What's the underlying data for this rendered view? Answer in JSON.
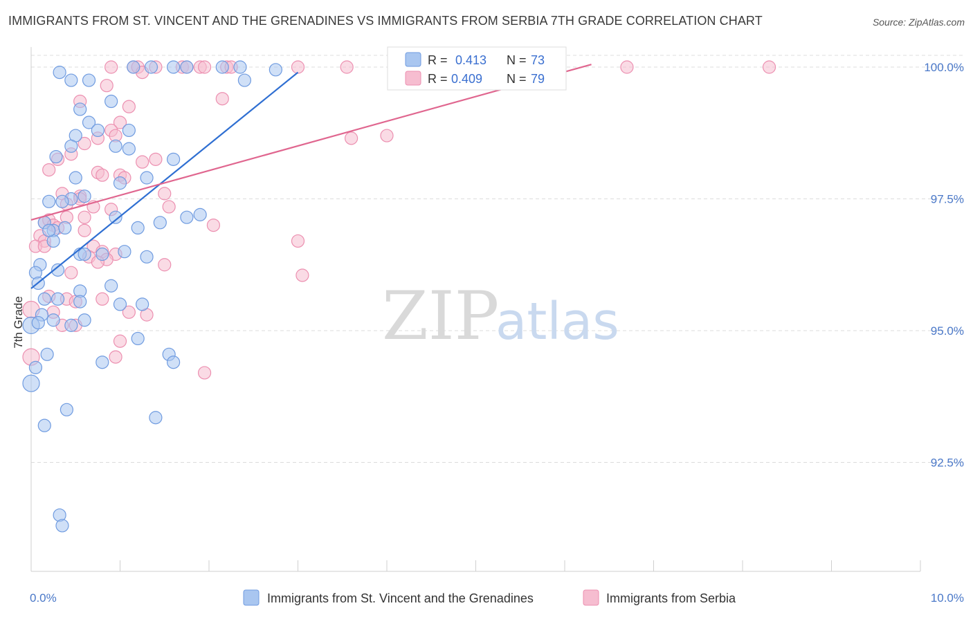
{
  "header": {
    "title": "IMMIGRANTS FROM ST. VINCENT AND THE GRENADINES VS IMMIGRANTS FROM SERBIA 7TH GRADE CORRELATION CHART",
    "source": "Source: ZipAtlas.com"
  },
  "watermark": {
    "zip": "ZIP",
    "atlas": "atlas"
  },
  "colors": {
    "blue_fill": "#a9c6f0",
    "blue_stroke": "#6f9be0",
    "blue_line": "#2f6fd2",
    "pink_fill": "#f6bdd0",
    "pink_stroke": "#ec8fb0",
    "pink_line": "#e0668f",
    "axis_label": "#4a78c8",
    "grid": "#dcdcdc"
  },
  "legend": {
    "r_label": "R = ",
    "n_label": "N = ",
    "blue": {
      "r": "0.413",
      "n": "73"
    },
    "pink": {
      "r": "0.409",
      "n": "79"
    }
  },
  "chart_data": {
    "type": "scatter",
    "title": "IMMIGRANTS FROM ST. VINCENT AND THE GRENADINES VS IMMIGRANTS FROM SERBIA 7TH GRADE CORRELATION CHART",
    "xlabel": "",
    "ylabel": "7th Grade",
    "xlim": [
      0,
      10
    ],
    "ylim": [
      90.5,
      100.3
    ],
    "x_tick_labels": [
      {
        "value": 0,
        "label": "0.0%"
      },
      {
        "value": 10,
        "label": "10.0%"
      }
    ],
    "x_minor_ticks": [
      1,
      2,
      3,
      4,
      5,
      6,
      7,
      8,
      9,
      10
    ],
    "y_ticks": [
      {
        "value": 100,
        "label": "100.0%"
      },
      {
        "value": 97.5,
        "label": "97.5%"
      },
      {
        "value": 95,
        "label": "95.0%"
      },
      {
        "value": 92.5,
        "label": "92.5%"
      }
    ],
    "grid": true,
    "legend_position": "bottom",
    "series": [
      {
        "name": "Immigrants from St. Vincent and the Grenadines",
        "color": "#a9c6f0",
        "r": 0.413,
        "n": 73,
        "trend": {
          "x": [
            0,
            3.0
          ],
          "y": [
            95.8,
            99.9
          ]
        },
        "points": [
          {
            "x": 0.32,
            "y": 99.9
          },
          {
            "x": 0.45,
            "y": 99.75
          },
          {
            "x": 0.65,
            "y": 99.75
          },
          {
            "x": 1.15,
            "y": 100.0
          },
          {
            "x": 1.35,
            "y": 100.0
          },
          {
            "x": 1.6,
            "y": 100.0
          },
          {
            "x": 1.75,
            "y": 100.0
          },
          {
            "x": 2.15,
            "y": 100.0
          },
          {
            "x": 2.35,
            "y": 100.0
          },
          {
            "x": 2.4,
            "y": 99.75
          },
          {
            "x": 2.75,
            "y": 99.95
          },
          {
            "x": 0.9,
            "y": 99.35
          },
          {
            "x": 0.55,
            "y": 99.2
          },
          {
            "x": 0.65,
            "y": 98.95
          },
          {
            "x": 0.75,
            "y": 98.8
          },
          {
            "x": 0.5,
            "y": 98.7
          },
          {
            "x": 1.1,
            "y": 98.8
          },
          {
            "x": 0.45,
            "y": 98.5
          },
          {
            "x": 0.95,
            "y": 98.5
          },
          {
            "x": 1.1,
            "y": 98.45
          },
          {
            "x": 0.28,
            "y": 98.3
          },
          {
            "x": 1.6,
            "y": 98.25
          },
          {
            "x": 0.5,
            "y": 97.9
          },
          {
            "x": 1.3,
            "y": 97.9
          },
          {
            "x": 1.0,
            "y": 97.8
          },
          {
            "x": 0.2,
            "y": 97.45
          },
          {
            "x": 0.45,
            "y": 97.5
          },
          {
            "x": 0.6,
            "y": 97.55
          },
          {
            "x": 0.35,
            "y": 97.45
          },
          {
            "x": 0.95,
            "y": 97.15
          },
          {
            "x": 1.75,
            "y": 97.15
          },
          {
            "x": 0.15,
            "y": 97.05
          },
          {
            "x": 1.45,
            "y": 97.05
          },
          {
            "x": 0.25,
            "y": 96.9
          },
          {
            "x": 0.38,
            "y": 96.95
          },
          {
            "x": 1.2,
            "y": 96.95
          },
          {
            "x": 0.25,
            "y": 96.7
          },
          {
            "x": 0.55,
            "y": 96.45
          },
          {
            "x": 0.6,
            "y": 96.45
          },
          {
            "x": 0.8,
            "y": 96.45
          },
          {
            "x": 1.3,
            "y": 96.4
          },
          {
            "x": 0.1,
            "y": 96.25
          },
          {
            "x": 0.05,
            "y": 96.1
          },
          {
            "x": 0.3,
            "y": 96.15
          },
          {
            "x": 0.08,
            "y": 95.9
          },
          {
            "x": 0.9,
            "y": 95.85
          },
          {
            "x": 0.55,
            "y": 95.75
          },
          {
            "x": 0.15,
            "y": 95.6
          },
          {
            "x": 0.3,
            "y": 95.6
          },
          {
            "x": 0.55,
            "y": 95.55
          },
          {
            "x": 1.0,
            "y": 95.5
          },
          {
            "x": 1.25,
            "y": 95.5
          },
          {
            "x": 0.12,
            "y": 95.3
          },
          {
            "x": 0.0,
            "y": 95.1
          },
          {
            "x": 0.08,
            "y": 95.15
          },
          {
            "x": 0.25,
            "y": 95.2
          },
          {
            "x": 0.45,
            "y": 95.1
          },
          {
            "x": 0.6,
            "y": 95.2
          },
          {
            "x": 1.2,
            "y": 94.85
          },
          {
            "x": 0.18,
            "y": 94.55
          },
          {
            "x": 1.55,
            "y": 94.55
          },
          {
            "x": 0.05,
            "y": 94.3
          },
          {
            "x": 0.8,
            "y": 94.4
          },
          {
            "x": 1.6,
            "y": 94.4
          },
          {
            "x": 0.0,
            "y": 94.0
          },
          {
            "x": 0.4,
            "y": 93.5
          },
          {
            "x": 0.15,
            "y": 93.2
          },
          {
            "x": 1.4,
            "y": 93.35
          },
          {
            "x": 0.32,
            "y": 91.5
          },
          {
            "x": 0.35,
            "y": 91.3
          },
          {
            "x": 0.2,
            "y": 96.9
          },
          {
            "x": 1.9,
            "y": 97.2
          },
          {
            "x": 1.05,
            "y": 96.5
          }
        ]
      },
      {
        "name": "Immigrants from Serbia",
        "color": "#f6bdd0",
        "r": 0.409,
        "n": 79,
        "trend": {
          "x": [
            0,
            6.3
          ],
          "y": [
            97.1,
            100.05
          ]
        },
        "points": [
          {
            "x": 0.9,
            "y": 100.0
          },
          {
            "x": 1.15,
            "y": 100.0
          },
          {
            "x": 1.2,
            "y": 100.0
          },
          {
            "x": 1.25,
            "y": 99.9
          },
          {
            "x": 1.4,
            "y": 100.0
          },
          {
            "x": 1.7,
            "y": 100.0
          },
          {
            "x": 1.75,
            "y": 100.0
          },
          {
            "x": 1.9,
            "y": 100.0
          },
          {
            "x": 1.95,
            "y": 100.0
          },
          {
            "x": 2.2,
            "y": 100.0
          },
          {
            "x": 2.25,
            "y": 100.0
          },
          {
            "x": 3.0,
            "y": 100.0
          },
          {
            "x": 3.55,
            "y": 100.0
          },
          {
            "x": 6.7,
            "y": 100.0
          },
          {
            "x": 8.3,
            "y": 100.0
          },
          {
            "x": 0.85,
            "y": 99.65
          },
          {
            "x": 0.55,
            "y": 99.35
          },
          {
            "x": 1.1,
            "y": 99.25
          },
          {
            "x": 2.15,
            "y": 99.4
          },
          {
            "x": 1.0,
            "y": 98.95
          },
          {
            "x": 0.9,
            "y": 98.8
          },
          {
            "x": 0.95,
            "y": 98.7
          },
          {
            "x": 0.75,
            "y": 98.65
          },
          {
            "x": 3.6,
            "y": 98.65
          },
          {
            "x": 4.0,
            "y": 98.7
          },
          {
            "x": 0.6,
            "y": 98.55
          },
          {
            "x": 0.45,
            "y": 98.35
          },
          {
            "x": 0.3,
            "y": 98.25
          },
          {
            "x": 1.25,
            "y": 98.2
          },
          {
            "x": 1.4,
            "y": 98.25
          },
          {
            "x": 0.2,
            "y": 98.05
          },
          {
            "x": 0.75,
            "y": 98.0
          },
          {
            "x": 0.8,
            "y": 97.95
          },
          {
            "x": 1.0,
            "y": 97.95
          },
          {
            "x": 1.05,
            "y": 97.9
          },
          {
            "x": 0.35,
            "y": 97.6
          },
          {
            "x": 0.55,
            "y": 97.55
          },
          {
            "x": 1.5,
            "y": 97.6
          },
          {
            "x": 0.4,
            "y": 97.4
          },
          {
            "x": 0.7,
            "y": 97.35
          },
          {
            "x": 0.9,
            "y": 97.3
          },
          {
            "x": 1.55,
            "y": 97.35
          },
          {
            "x": 0.6,
            "y": 97.15
          },
          {
            "x": 0.4,
            "y": 97.15
          },
          {
            "x": 0.15,
            "y": 97.05
          },
          {
            "x": 0.2,
            "y": 97.1
          },
          {
            "x": 0.25,
            "y": 97.0
          },
          {
            "x": 2.05,
            "y": 97.0
          },
          {
            "x": 0.3,
            "y": 96.95
          },
          {
            "x": 0.6,
            "y": 96.9
          },
          {
            "x": 0.1,
            "y": 96.8
          },
          {
            "x": 0.15,
            "y": 96.7
          },
          {
            "x": 3.0,
            "y": 96.7
          },
          {
            "x": 0.05,
            "y": 96.6
          },
          {
            "x": 0.15,
            "y": 96.6
          },
          {
            "x": 0.7,
            "y": 96.6
          },
          {
            "x": 0.8,
            "y": 96.5
          },
          {
            "x": 0.95,
            "y": 96.45
          },
          {
            "x": 0.65,
            "y": 96.4
          },
          {
            "x": 0.85,
            "y": 96.35
          },
          {
            "x": 0.75,
            "y": 96.3
          },
          {
            "x": 1.5,
            "y": 96.25
          },
          {
            "x": 0.45,
            "y": 96.1
          },
          {
            "x": 3.05,
            "y": 96.05
          },
          {
            "x": 0.2,
            "y": 95.65
          },
          {
            "x": 0.4,
            "y": 95.6
          },
          {
            "x": 0.5,
            "y": 95.55
          },
          {
            "x": 0.8,
            "y": 95.6
          },
          {
            "x": 0.25,
            "y": 95.35
          },
          {
            "x": 1.1,
            "y": 95.35
          },
          {
            "x": 1.3,
            "y": 95.3
          },
          {
            "x": 0.35,
            "y": 95.1
          },
          {
            "x": 0.5,
            "y": 95.1
          },
          {
            "x": 0.0,
            "y": 95.4
          },
          {
            "x": 1.0,
            "y": 94.8
          },
          {
            "x": 0.95,
            "y": 94.5
          },
          {
            "x": 1.95,
            "y": 94.2
          },
          {
            "x": 0.0,
            "y": 94.5
          },
          {
            "x": 0.55,
            "y": 97.5
          }
        ]
      }
    ]
  }
}
